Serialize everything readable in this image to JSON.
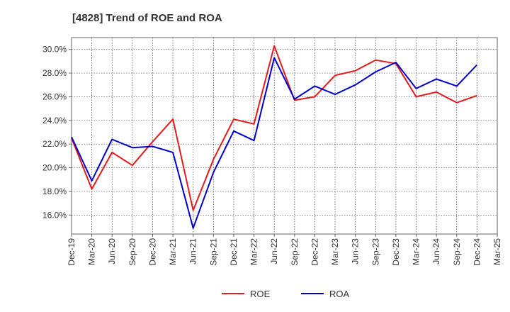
{
  "chart_data": {
    "type": "line",
    "title": "[4828]  Trend of ROE and ROA",
    "xlabel": "",
    "ylabel": "",
    "categories": [
      "Dec-19",
      "Mar-20",
      "Jun-20",
      "Sep-20",
      "Dec-20",
      "Mar-21",
      "Jun-21",
      "Sep-21",
      "Dec-21",
      "Mar-22",
      "Jun-22",
      "Sep-22",
      "Dec-22",
      "Mar-23",
      "Jun-23",
      "Sep-23",
      "Dec-23",
      "Mar-24",
      "Jun-24",
      "Sep-24",
      "Dec-24",
      "Mar-25"
    ],
    "y_ticks": [
      "16.0%",
      "18.0%",
      "20.0%",
      "22.0%",
      "24.0%",
      "26.0%",
      "28.0%",
      "30.0%"
    ],
    "ylim": [
      14.4,
      31.0
    ],
    "grid": true,
    "legend_position": "bottom",
    "series": [
      {
        "name": "ROE",
        "color": "#e31a1c",
        "values": [
          22.5,
          18.2,
          21.3,
          20.2,
          22.2,
          24.1,
          16.4,
          20.7,
          24.1,
          23.7,
          30.3,
          25.7,
          26.0,
          27.8,
          28.2,
          29.1,
          28.8,
          26.0,
          26.4,
          25.5,
          26.1,
          null
        ]
      },
      {
        "name": "ROA",
        "color": "#0000cc",
        "values": [
          22.6,
          18.9,
          22.4,
          21.7,
          21.8,
          21.3,
          14.9,
          19.6,
          23.1,
          22.3,
          29.3,
          25.8,
          26.9,
          26.2,
          27.0,
          28.1,
          28.9,
          26.7,
          27.5,
          26.9,
          28.7,
          null
        ]
      }
    ]
  }
}
